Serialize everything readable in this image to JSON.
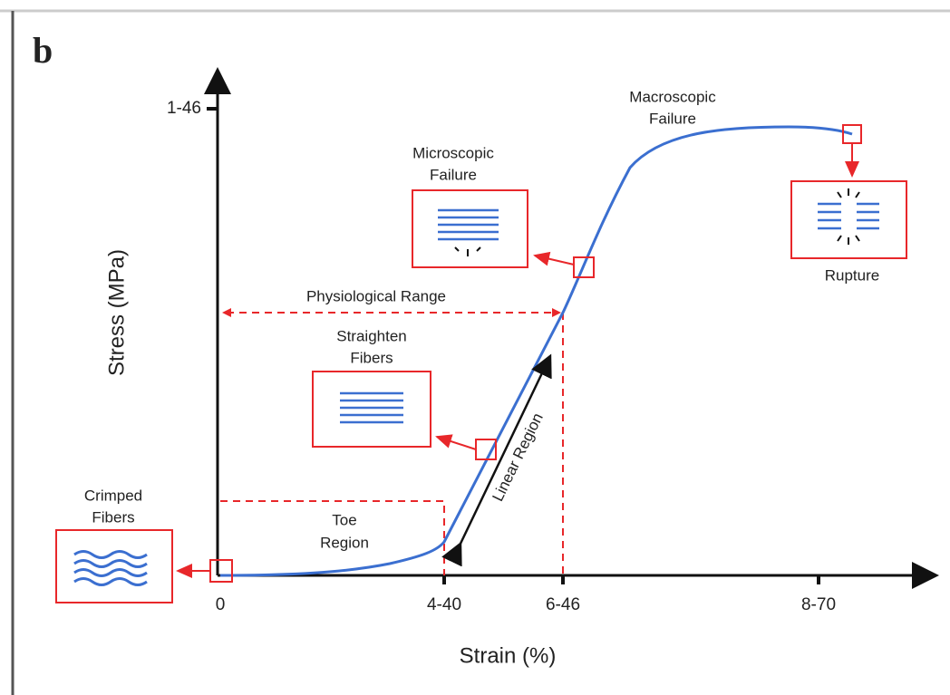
{
  "panel_label": "b",
  "y_axis": {
    "title": "Stress (MPa)",
    "tick_label": "1-46"
  },
  "x_axis": {
    "title": "Strain (%)",
    "tick_labels": [
      "0",
      "4-40",
      "6-46",
      "8-70"
    ]
  },
  "annotations": {
    "macroscopic_failure": [
      "Macroscopic",
      "Failure"
    ],
    "microscopic_failure": [
      "Microscopic",
      "Failure"
    ],
    "physiological_range": "Physiological Range",
    "straighten_fibers": [
      "Straighten",
      "Fibers"
    ],
    "crimped_fibers": [
      "Crimped",
      "Fibers"
    ],
    "toe_region": [
      "Toe",
      "Region"
    ],
    "linear_region": "Linear Region",
    "rupture": "Rupture"
  }
}
